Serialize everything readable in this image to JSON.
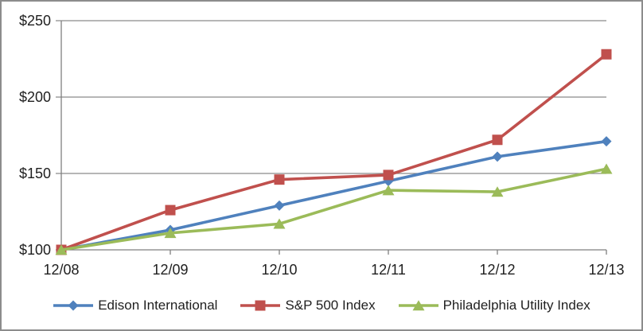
{
  "chart_data": {
    "type": "line",
    "title": "",
    "categories": [
      "12/08",
      "12/09",
      "12/10",
      "12/11",
      "12/12",
      "12/13"
    ],
    "series": [
      {
        "name": "Edison International",
        "marker": "diamond",
        "color": "#4F81BD",
        "values": [
          100,
          113,
          129,
          145,
          161,
          171
        ]
      },
      {
        "name": "S&P 500 Index",
        "marker": "square",
        "color": "#C0504D",
        "values": [
          100,
          126,
          146,
          149,
          172,
          228
        ]
      },
      {
        "name": "Philadelphia Utility Index",
        "marker": "triangle",
        "color": "#9BBB59",
        "values": [
          100,
          111,
          117,
          139,
          138,
          153
        ]
      }
    ],
    "y_axis": {
      "min": 100,
      "max": 250,
      "tick_values": [
        100,
        150,
        200,
        250
      ],
      "tick_labels": [
        "$100",
        "$150",
        "$200",
        "$250"
      ]
    },
    "legend_position": "bottom",
    "grid": true
  },
  "colors": {
    "grid": "#8a8a8a",
    "axis": "#7f7f7f",
    "text": "#1f1f1f",
    "frame_border": "#8c8c8c"
  }
}
